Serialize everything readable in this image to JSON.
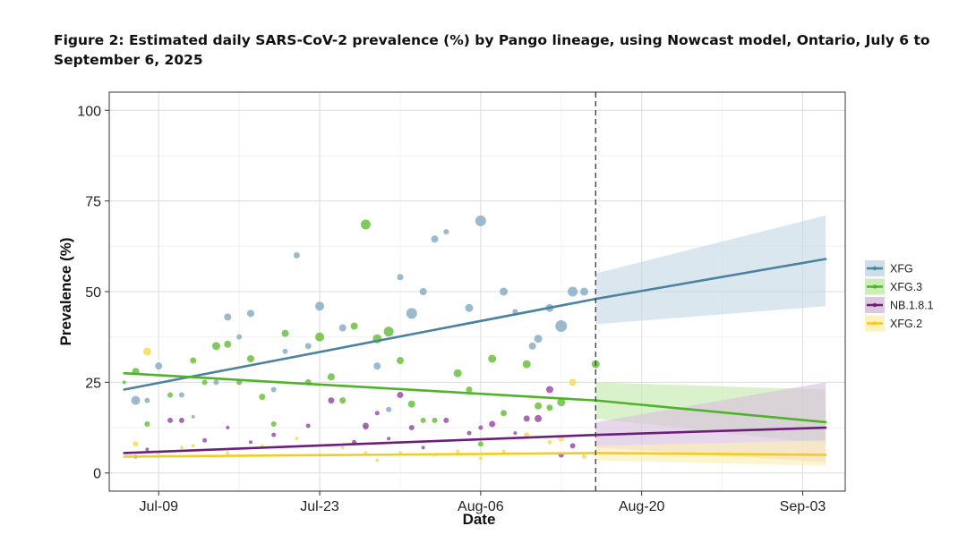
{
  "figure": {
    "title": "Figure 2: Estimated daily SARS-CoV-2 prevalence (%) by Pango lineage, using Nowcast model, Ontario, July 6 to September 6, 2025"
  },
  "chart_data": {
    "type": "scatter",
    "title": "Figure 2: Estimated daily SARS-CoV-2 prevalence (%) by Pango lineage, using Nowcast model, Ontario, July 6 to September 6, 2025",
    "xlabel": "Date",
    "ylabel": "Prevalence (%)",
    "x_unit": "days since Jul-06-2025",
    "xlim": [
      -1.3,
      62.7
    ],
    "ylim": [
      -5,
      105
    ],
    "grid": true,
    "xticks": [
      {
        "day": 3,
        "label": "Jul-09"
      },
      {
        "day": 17,
        "label": "Jul-23"
      },
      {
        "day": 31,
        "label": "Aug-06"
      },
      {
        "day": 45,
        "label": "Aug-20"
      },
      {
        "day": 59,
        "label": "Sep-03"
      }
    ],
    "yticks": [
      0,
      25,
      50,
      75,
      100
    ],
    "nowcast_start_day": 41,
    "legend_position": "right",
    "series": [
      {
        "name": "XFG",
        "color": "#4a82a0",
        "point_color": "#89aec4",
        "band_color": "#c6dae6",
        "trend": [
          [
            0,
            23
          ],
          [
            41,
            48
          ],
          [
            61,
            59
          ]
        ],
        "band_upper": [
          [
            41,
            55
          ],
          [
            61,
            71
          ]
        ],
        "band_lower": [
          [
            41,
            41
          ],
          [
            61,
            46
          ]
        ],
        "points": [
          [
            1,
            20,
            5
          ],
          [
            2,
            20,
            3
          ],
          [
            3,
            29.5,
            4
          ],
          [
            5,
            21.5,
            3
          ],
          [
            6,
            15.5,
            2
          ],
          [
            8,
            25,
            3
          ],
          [
            9,
            43,
            4
          ],
          [
            10,
            37.5,
            3
          ],
          [
            11,
            44,
            4
          ],
          [
            13,
            23,
            3
          ],
          [
            14,
            33.5,
            3
          ],
          [
            15,
            60,
            3.5
          ],
          [
            16,
            35,
            3.5
          ],
          [
            17,
            46,
            5
          ],
          [
            19,
            40,
            4
          ],
          [
            21,
            12.5,
            2.5
          ],
          [
            22,
            29.5,
            4
          ],
          [
            23,
            17.5,
            3
          ],
          [
            24,
            54,
            3.5
          ],
          [
            25,
            44,
            6
          ],
          [
            26,
            50,
            4
          ],
          [
            27,
            64.5,
            4
          ],
          [
            28,
            66.5,
            3
          ],
          [
            30,
            45.5,
            4.5
          ],
          [
            31,
            69.5,
            6
          ],
          [
            33,
            50,
            4.5
          ],
          [
            34,
            44.5,
            3
          ],
          [
            35.5,
            35,
            4
          ],
          [
            36,
            37,
            4.5
          ],
          [
            37,
            45.5,
            4.5
          ],
          [
            38,
            40.5,
            6.5
          ],
          [
            39,
            50,
            5.5
          ],
          [
            40,
            50,
            4.5
          ]
        ]
      },
      {
        "name": "XFG.3",
        "color": "#4fb32a",
        "point_color": "#6cbf3f",
        "band_color": "#c6ebb0",
        "trend": [
          [
            0,
            27.5
          ],
          [
            41,
            20
          ],
          [
            61,
            14
          ]
        ],
        "band_upper": [
          [
            41,
            25
          ],
          [
            61,
            23
          ]
        ],
        "band_lower": [
          [
            41,
            15
          ],
          [
            61,
            8
          ]
        ],
        "points": [
          [
            0,
            25,
            2
          ],
          [
            1,
            28,
            4
          ],
          [
            2,
            13.5,
            3
          ],
          [
            4,
            21.5,
            3
          ],
          [
            6,
            31,
            3.5
          ],
          [
            7,
            25,
            3
          ],
          [
            8,
            35,
            4.5
          ],
          [
            9,
            35.5,
            4
          ],
          [
            10,
            25,
            3
          ],
          [
            11,
            31.5,
            4
          ],
          [
            12,
            21,
            3.5
          ],
          [
            13,
            13.5,
            3
          ],
          [
            14,
            38.5,
            4
          ],
          [
            16,
            25,
            3.5
          ],
          [
            17,
            37.5,
            5
          ],
          [
            18,
            26.5,
            4
          ],
          [
            19,
            20,
            3.5
          ],
          [
            20,
            40.5,
            4
          ],
          [
            21,
            68.5,
            5.5
          ],
          [
            22,
            37,
            5
          ],
          [
            23,
            39,
            5.5
          ],
          [
            24,
            31,
            4
          ],
          [
            25,
            19,
            4
          ],
          [
            26,
            14.5,
            3
          ],
          [
            27,
            14.5,
            3
          ],
          [
            29,
            27.5,
            4.5
          ],
          [
            30,
            23,
            3.5
          ],
          [
            31,
            8,
            3
          ],
          [
            32,
            31.5,
            4.5
          ],
          [
            33,
            16.5,
            3.5
          ],
          [
            35,
            30,
            4.5
          ],
          [
            36,
            18.5,
            4
          ],
          [
            37,
            18,
            3.5
          ],
          [
            38,
            19.5,
            4.5
          ],
          [
            41,
            30,
            4.5
          ]
        ]
      },
      {
        "name": "NB.1.8.1",
        "color": "#6c1f7a",
        "point_color": "#9b4fa8",
        "band_color": "#d9c1de",
        "trend": [
          [
            0,
            5.5
          ],
          [
            41,
            10.5
          ],
          [
            61,
            12.5
          ]
        ],
        "band_upper": [
          [
            41,
            14
          ],
          [
            61,
            25
          ]
        ],
        "band_lower": [
          [
            41,
            7
          ],
          [
            61,
            3
          ]
        ],
        "points": [
          [
            1,
            4.5,
            2
          ],
          [
            2,
            6.5,
            2
          ],
          [
            4,
            14.5,
            3
          ],
          [
            5,
            14.5,
            3
          ],
          [
            7,
            9,
            2.5
          ],
          [
            9,
            12.5,
            2
          ],
          [
            11,
            8.5,
            2
          ],
          [
            13,
            10.5,
            2.5
          ],
          [
            16,
            13,
            2.5
          ],
          [
            18,
            20,
            3.5
          ],
          [
            20,
            8.5,
            2.5
          ],
          [
            21,
            13,
            3.5
          ],
          [
            22,
            16.5,
            2.5
          ],
          [
            23,
            9.5,
            2
          ],
          [
            24,
            21.5,
            3.5
          ],
          [
            25,
            12.5,
            3
          ],
          [
            26,
            7,
            2
          ],
          [
            28,
            14.5,
            3
          ],
          [
            30,
            11,
            2.5
          ],
          [
            31,
            12.5,
            2.5
          ],
          [
            32,
            13.5,
            3.5
          ],
          [
            34,
            11,
            2
          ],
          [
            35,
            15,
            3.5
          ],
          [
            36,
            15,
            4
          ],
          [
            37,
            23,
            4
          ],
          [
            38,
            5,
            3
          ],
          [
            39,
            7.5,
            3
          ]
        ]
      },
      {
        "name": "XFG.2",
        "color": "#f2cc22",
        "point_color": "#f7dc5a",
        "band_color": "#fdf0b6",
        "trend": [
          [
            0,
            4.5
          ],
          [
            41,
            5.5
          ],
          [
            61,
            5
          ]
        ],
        "band_upper": [
          [
            41,
            7.5
          ],
          [
            61,
            9
          ]
        ],
        "band_lower": [
          [
            41,
            3.5
          ],
          [
            61,
            2
          ]
        ],
        "points": [
          [
            1,
            8,
            3
          ],
          [
            2,
            33.5,
            4.5
          ],
          [
            3,
            5.5,
            2
          ],
          [
            5,
            7,
            2
          ],
          [
            6,
            7.5,
            2
          ],
          [
            9,
            5.5,
            2
          ],
          [
            12,
            7.5,
            2
          ],
          [
            15,
            9.5,
            2
          ],
          [
            17,
            5,
            2
          ],
          [
            19,
            7,
            2
          ],
          [
            21,
            5.5,
            2
          ],
          [
            22,
            3.5,
            2
          ],
          [
            24,
            5.5,
            2
          ],
          [
            27,
            5,
            2
          ],
          [
            29,
            6,
            2
          ],
          [
            31,
            4,
            2
          ],
          [
            33,
            6,
            2
          ],
          [
            35,
            10.5,
            3
          ],
          [
            37,
            8.5,
            2.5
          ],
          [
            38,
            9.5,
            3.5
          ],
          [
            39,
            25,
            4
          ],
          [
            40,
            4.5,
            2.5
          ]
        ]
      }
    ]
  }
}
